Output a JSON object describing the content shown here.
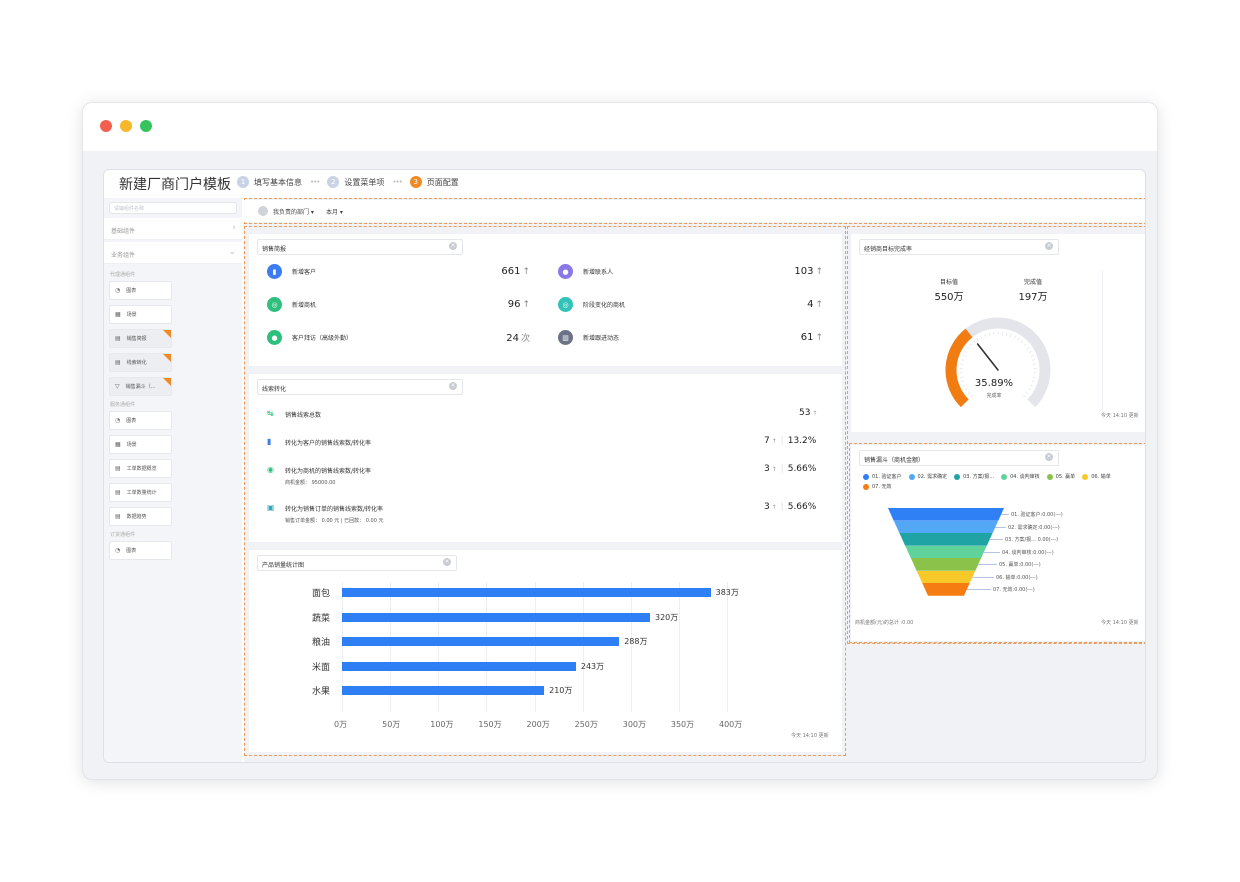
{
  "app": {
    "title": "新建厂商门户模板",
    "steps": [
      {
        "num": "1",
        "label": "填写基本信息"
      },
      {
        "num": "2",
        "label": "设置菜单项"
      },
      {
        "num": "3",
        "label": "页面配置"
      }
    ]
  },
  "sidebar": {
    "search_placeholder": "请输组件名称",
    "categories": [
      "基础组件",
      "业务组件"
    ],
    "groups": [
      {
        "title": "代理通组件",
        "items": [
          {
            "label": "图表",
            "icon": "pie-icon",
            "glyph": "◔",
            "used": false
          },
          {
            "label": "场景",
            "icon": "scene-icon",
            "glyph": "▦",
            "used": false
          },
          {
            "label": "销售简报",
            "icon": "report-icon",
            "glyph": "▤",
            "used": true
          },
          {
            "label": "线索转化",
            "icon": "report-icon",
            "glyph": "▤",
            "used": true
          },
          {
            "label": "销售漏斗（...",
            "icon": "funnel-icon",
            "glyph": "▽",
            "used": true
          }
        ]
      },
      {
        "title": "服务通组件",
        "items": [
          {
            "label": "图表",
            "icon": "pie-icon",
            "glyph": "◔",
            "used": false
          },
          {
            "label": "场景",
            "icon": "scene-icon",
            "glyph": "▦",
            "used": false
          },
          {
            "label": "工单数据概览",
            "icon": "report-icon",
            "glyph": "▤",
            "used": false
          },
          {
            "label": "工单数量统计",
            "icon": "report-icon",
            "glyph": "▤",
            "used": false
          },
          {
            "label": "数据趋势",
            "icon": "report-icon",
            "glyph": "▤",
            "used": false
          }
        ]
      },
      {
        "title": "订货通组件",
        "items": [
          {
            "label": "图表",
            "icon": "pie-icon",
            "glyph": "◔",
            "used": false
          }
        ]
      }
    ]
  },
  "filters": {
    "dept": "我负责的部门 ▾",
    "period": "本月 ▾"
  },
  "sales_report": {
    "title": "销售简报",
    "metrics": [
      {
        "label": "新增客户",
        "value": "661",
        "suffix": "↑",
        "color": "#3d7cf0",
        "glyph": "▮"
      },
      {
        "label": "新增联系人",
        "value": "103",
        "suffix": "↑",
        "color": "#8a78e8",
        "glyph": "●"
      },
      {
        "label": "新增商机",
        "value": "96",
        "suffix": "↑",
        "color": "#2fbf7d",
        "glyph": "◎"
      },
      {
        "label": "阶段变化的商机",
        "value": "4",
        "suffix": "↑",
        "color": "#31c2b8",
        "glyph": "◎"
      },
      {
        "label": "客户拜访（高级外勤）",
        "value": "24",
        "suffix": "次",
        "color": "#2fbf7d",
        "glyph": "●"
      },
      {
        "label": "新增跟进动态",
        "value": "61",
        "suffix": "↑",
        "color": "#6b7288",
        "glyph": "▥"
      }
    ]
  },
  "lead_conversion": {
    "title": "线索转化",
    "rows": [
      {
        "label": "销售线索总数",
        "sub": "",
        "count": "53",
        "rate": ""
      },
      {
        "label": "转化为客户的销售线索数/转化率",
        "sub": "",
        "count": "7",
        "rate": "13.2%"
      },
      {
        "label": "转化为商机的销售线索数/转化率",
        "sub": "商机金额：  95000.00",
        "count": "3",
        "rate": "5.66%"
      },
      {
        "label": "转化为销售订单的销售线索数/转化率",
        "sub": "销售订单金额：  0.00 元  |  已回款：  0.00 元",
        "count": "3",
        "rate": "5.66%"
      }
    ]
  },
  "product_chart": {
    "title": "产品销量统计图",
    "update": "今天 14:10 更新"
  },
  "chart_data": {
    "type": "bar",
    "orientation": "horizontal",
    "categories": [
      "面包",
      "蔬菜",
      "粮油",
      "米面",
      "水果"
    ],
    "values": [
      383,
      320,
      288,
      243,
      210
    ],
    "value_labels": [
      "383万",
      "320万",
      "288万",
      "243万",
      "210万"
    ],
    "xticks": [
      "0万",
      "50万",
      "100万",
      "150万",
      "200万",
      "250万",
      "300万",
      "350万",
      "400万"
    ],
    "xlim": [
      0,
      400
    ],
    "color": "#2e7ef5",
    "grid": true
  },
  "target_completion": {
    "title": "经销商目标完成率",
    "target_label": "目标值",
    "target_value": "550万",
    "done_label": "完成值",
    "done_value": "197万",
    "percent_text": "35.89%",
    "percent": 0.3589,
    "caption": "完成率",
    "update": "今天 14:10 更新",
    "color": "#f07c12"
  },
  "funnel": {
    "title": "销售漏斗（商机金额）",
    "stages": [
      {
        "legend": "01. 验证客户",
        "label": "01. 验证客户:0.00(---)",
        "color": "#2f7ff5"
      },
      {
        "legend": "02. 需求确定",
        "label": "02. 需求确定:0.00(---)",
        "color": "#53a8f5"
      },
      {
        "legend": "03. 方案/报...",
        "label": "03. 方案/报... 0.00(---)",
        "color": "#20a3a5"
      },
      {
        "legend": "04. 谈判审核",
        "label": "04. 谈判审核:0.00(---)",
        "color": "#5fd39a"
      },
      {
        "legend": "05. 赢单",
        "label": "05. 赢单:0.00(---)",
        "color": "#8bc34a"
      },
      {
        "legend": "06. 输单",
        "label": "06. 输单:0.00(---)",
        "color": "#f7c928"
      },
      {
        "legend": "07. 无效",
        "label": "07. 无效:0.00(---)",
        "color": "#f57c10"
      }
    ],
    "footer": "商机金额(元)的总计 :0.00",
    "update": "今天 14:10 更新"
  }
}
